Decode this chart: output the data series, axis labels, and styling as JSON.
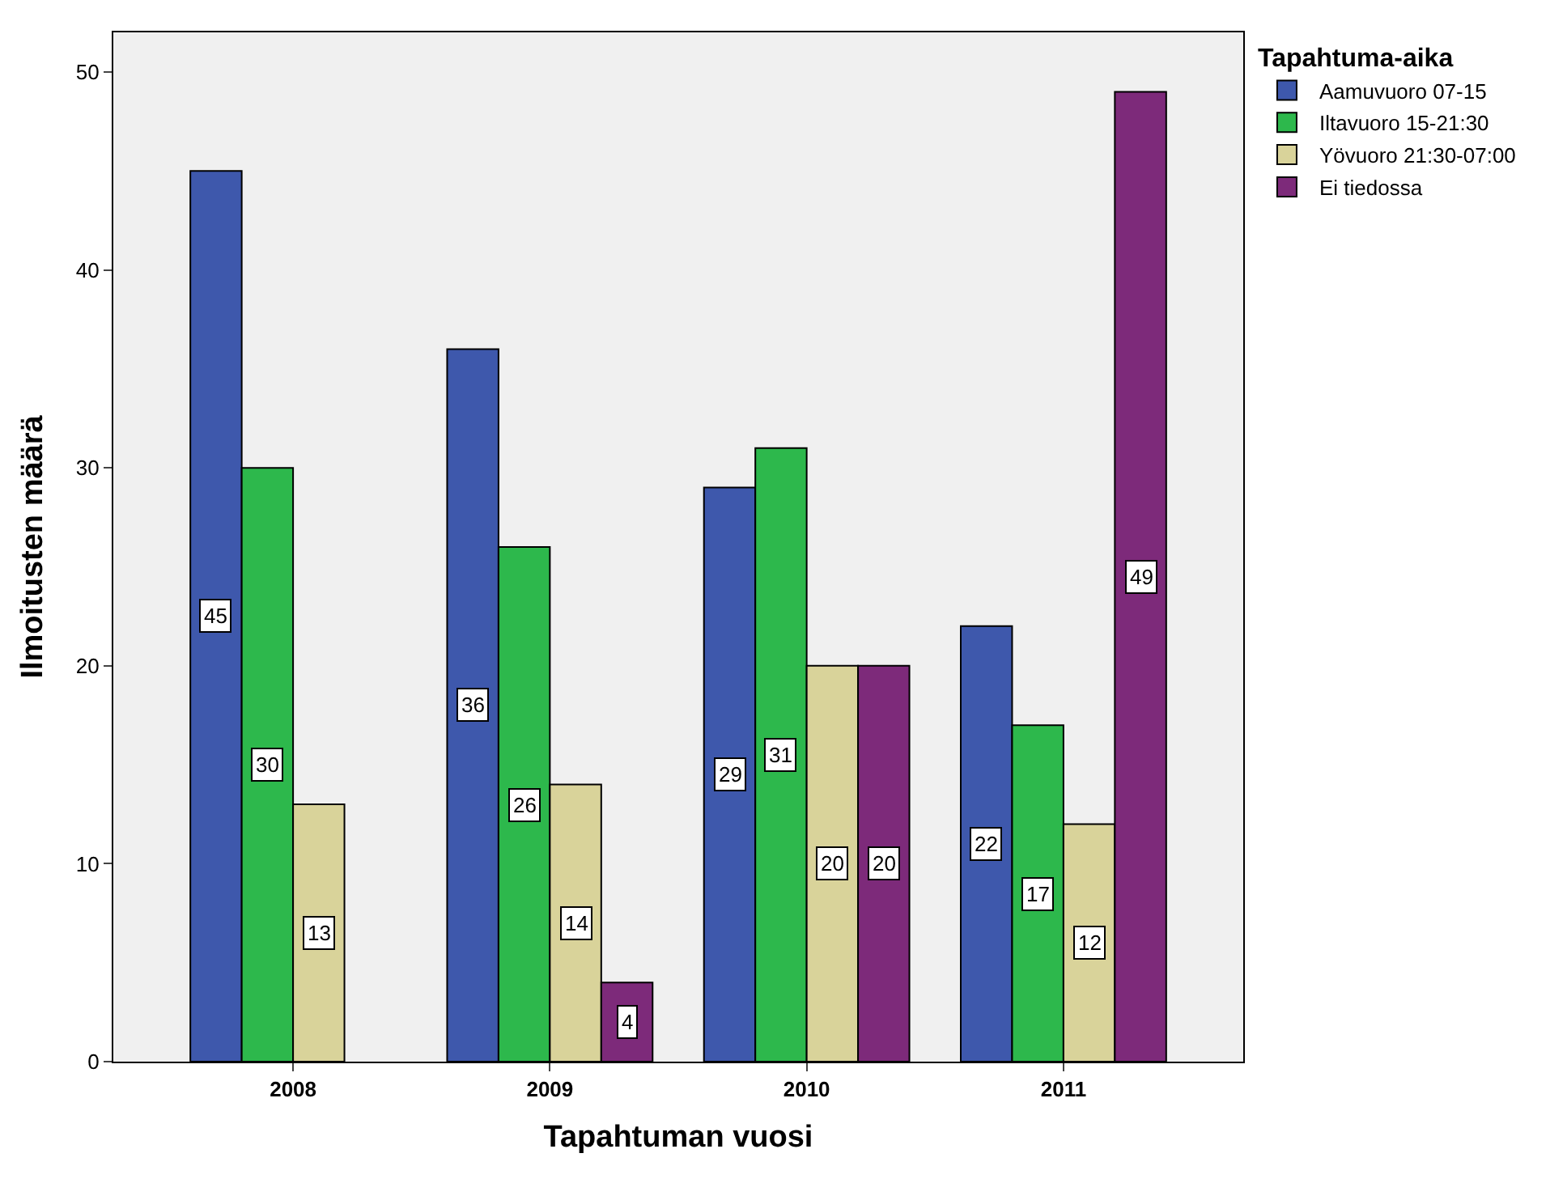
{
  "chart_data": {
    "type": "bar",
    "xlabel": "Tapahtuman vuosi",
    "ylabel": "Ilmoitusten määrä",
    "legend_title": "Tapahtuma-aika",
    "categories": [
      "2008",
      "2009",
      "2010",
      "2011"
    ],
    "series": [
      {
        "name": "Aamuvuoro 07-15",
        "color": "#3e58ac",
        "values": [
          45,
          36,
          29,
          22
        ]
      },
      {
        "name": "Iltavuoro 15-21:30",
        "color": "#2db84c",
        "values": [
          30,
          26,
          31,
          17
        ]
      },
      {
        "name": "Yövuoro 21:30-07:00",
        "color": "#d9d39a",
        "values": [
          13,
          14,
          20,
          12
        ]
      },
      {
        "name": "Ei tiedossa",
        "color": "#7d2a7a",
        "values": [
          null,
          4,
          20,
          49
        ]
      }
    ],
    "ylim": [
      0,
      52
    ],
    "yticks": [
      0,
      10,
      20,
      30,
      40,
      50
    ],
    "grid": false,
    "legend": "top right",
    "data_labels": true
  }
}
